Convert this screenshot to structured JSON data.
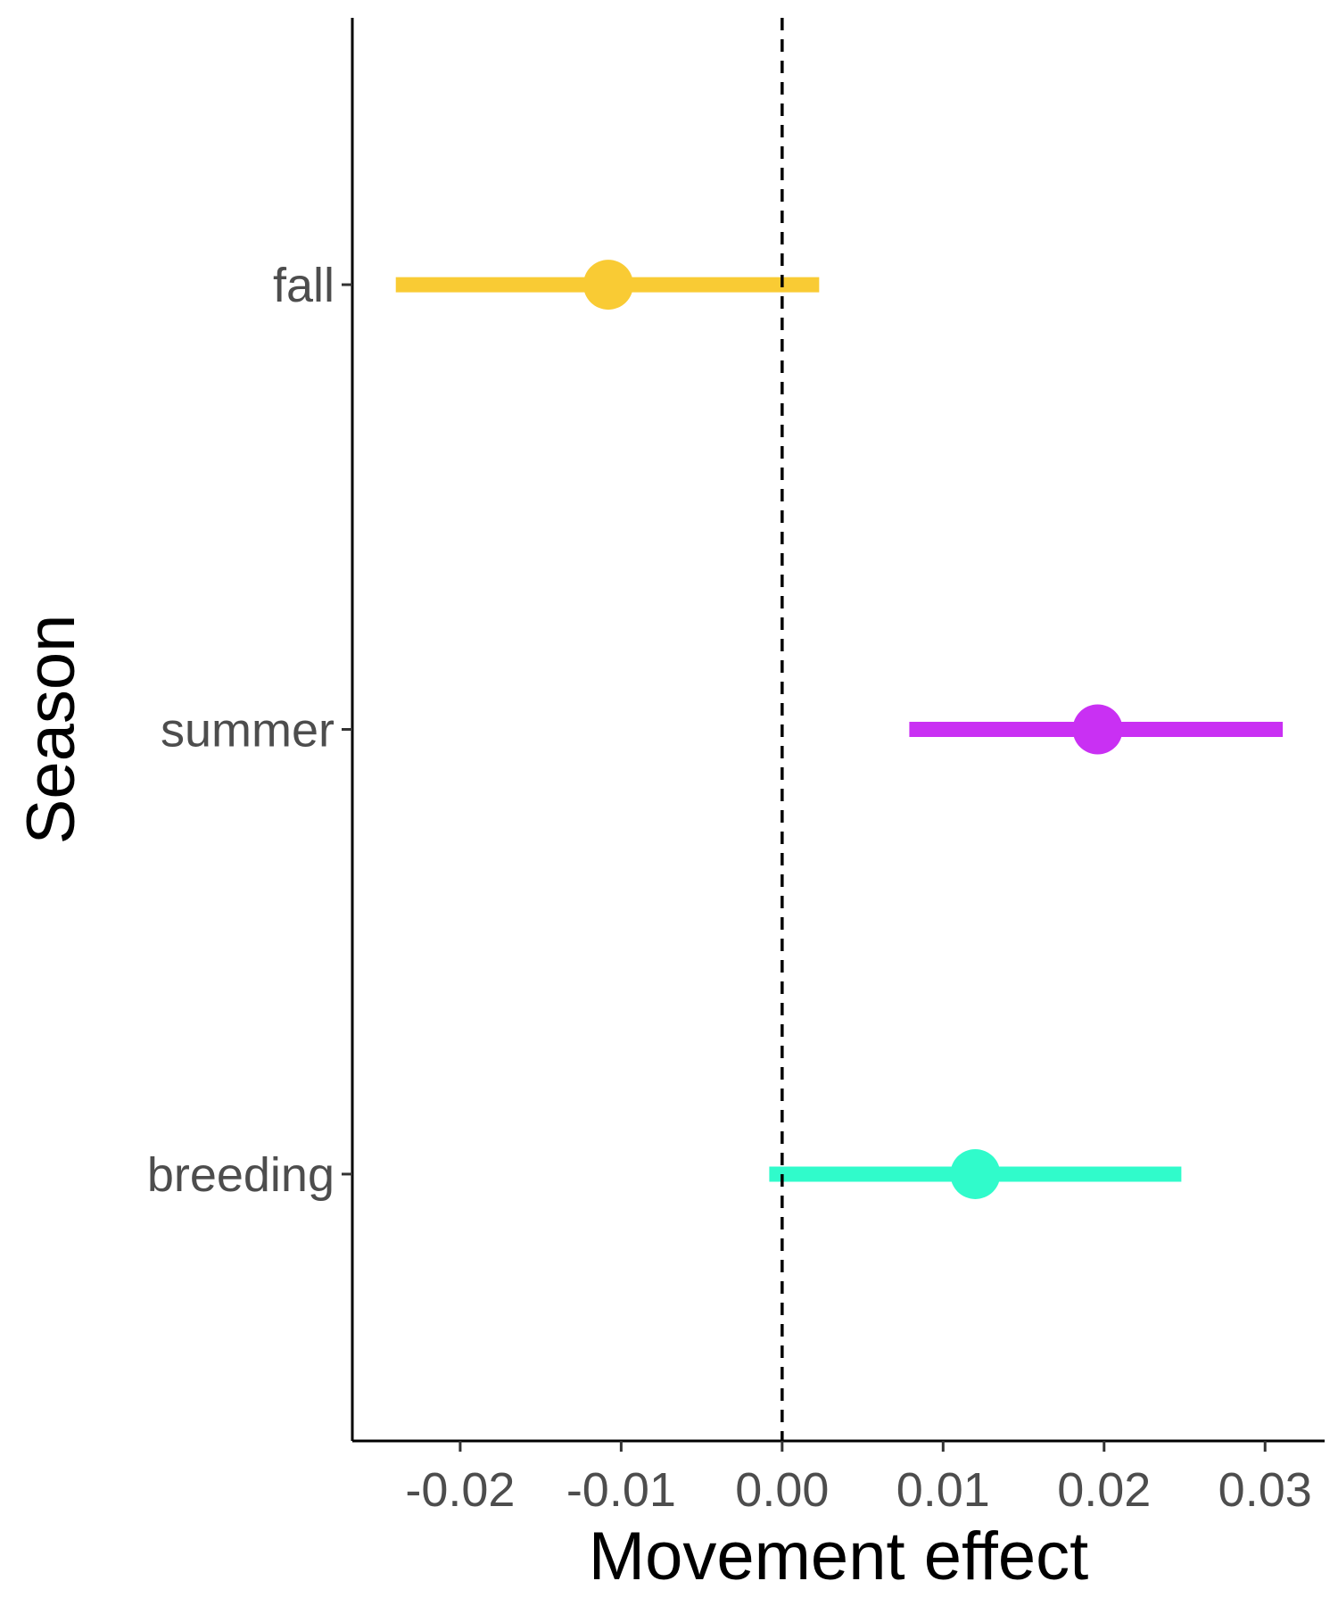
{
  "chart_data": {
    "type": "scatter",
    "subtype": "point-range",
    "orientation": "horizontal",
    "xlabel": "Movement effect",
    "ylabel": "Season",
    "xlim": [
      -0.0267,
      0.0337
    ],
    "x_ticks": [
      -0.02,
      -0.01,
      0.0,
      0.01,
      0.02,
      0.03
    ],
    "x_tick_labels": [
      "-0.02",
      "-0.01",
      "0.00",
      "0.01",
      "0.02",
      "0.03"
    ],
    "categories": [
      "fall",
      "summer",
      "breeding"
    ],
    "points": [
      {
        "category": "fall",
        "estimate": -0.0108,
        "lower": -0.024,
        "upper": 0.0023,
        "color": "#F9CB34"
      },
      {
        "category": "summer",
        "estimate": 0.0196,
        "lower": 0.0079,
        "upper": 0.0311,
        "color": "#C930F3"
      },
      {
        "category": "breeding",
        "estimate": 0.012,
        "lower": -0.0008,
        "upper": 0.0248,
        "color": "#30FBCB"
      }
    ],
    "reference_line": {
      "x": 0.0,
      "style": "dashed",
      "color": "#000000"
    },
    "grid": false,
    "legend": "none"
  }
}
